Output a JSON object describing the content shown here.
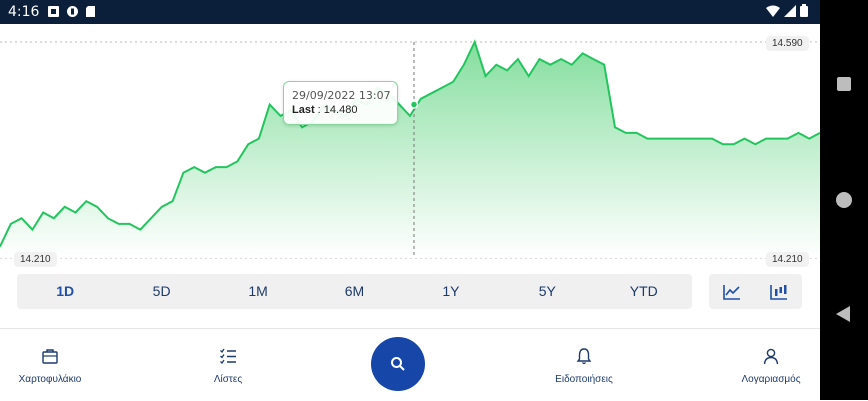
{
  "status_bar": {
    "time": "4:16"
  },
  "chart": {
    "y_max_label": "14.590",
    "y_min_label": "14.210",
    "y_min_right_label": "14.210",
    "tooltip": {
      "date": "29/09/2022 13:07",
      "series_label": "Last",
      "separator": " : ",
      "value": "14.480"
    },
    "line_color": "#22c55e",
    "fill_color": "#8be0a4"
  },
  "chart_data": {
    "type": "area",
    "y_range": [
      14.21,
      14.59
    ],
    "highlighted": {
      "time": "29/09/2022 13:07",
      "value": 14.48
    },
    "values": [
      14.23,
      14.27,
      14.28,
      14.26,
      14.29,
      14.28,
      14.3,
      14.29,
      14.31,
      14.3,
      14.28,
      14.27,
      14.27,
      14.26,
      14.28,
      14.3,
      14.31,
      14.36,
      14.37,
      14.36,
      14.37,
      14.37,
      14.38,
      14.41,
      14.42,
      14.48,
      14.46,
      14.47,
      14.44,
      14.45,
      14.48,
      14.47,
      14.46,
      14.49,
      14.48,
      14.51,
      14.5,
      14.48,
      14.46,
      14.49,
      14.5,
      14.51,
      14.52,
      14.55,
      14.59,
      14.53,
      14.55,
      14.54,
      14.56,
      14.53,
      14.56,
      14.55,
      14.56,
      14.55,
      14.57,
      14.56,
      14.55,
      14.44,
      14.43,
      14.43,
      14.42,
      14.42,
      14.42,
      14.42,
      14.42,
      14.42,
      14.42,
      14.41,
      14.41,
      14.42,
      14.41,
      14.42,
      14.42,
      14.42,
      14.43,
      14.42,
      14.43
    ]
  },
  "ranges": [
    {
      "label": "1D",
      "active": true
    },
    {
      "label": "5D",
      "active": false
    },
    {
      "label": "1M",
      "active": false
    },
    {
      "label": "6M",
      "active": false
    },
    {
      "label": "1Y",
      "active": false
    },
    {
      "label": "5Y",
      "active": false
    },
    {
      "label": "YTD",
      "active": false
    }
  ],
  "chart_types": [
    {
      "icon": "line-chart-icon"
    },
    {
      "icon": "candlestick-chart-icon"
    }
  ],
  "bottom_nav": {
    "portfolio": "Χαρτοφυλάκιο",
    "lists": "Λίστες",
    "search_icon": "search-icon",
    "notifications": "Ειδοποιήσεις",
    "account": "Λογαριασμός"
  }
}
